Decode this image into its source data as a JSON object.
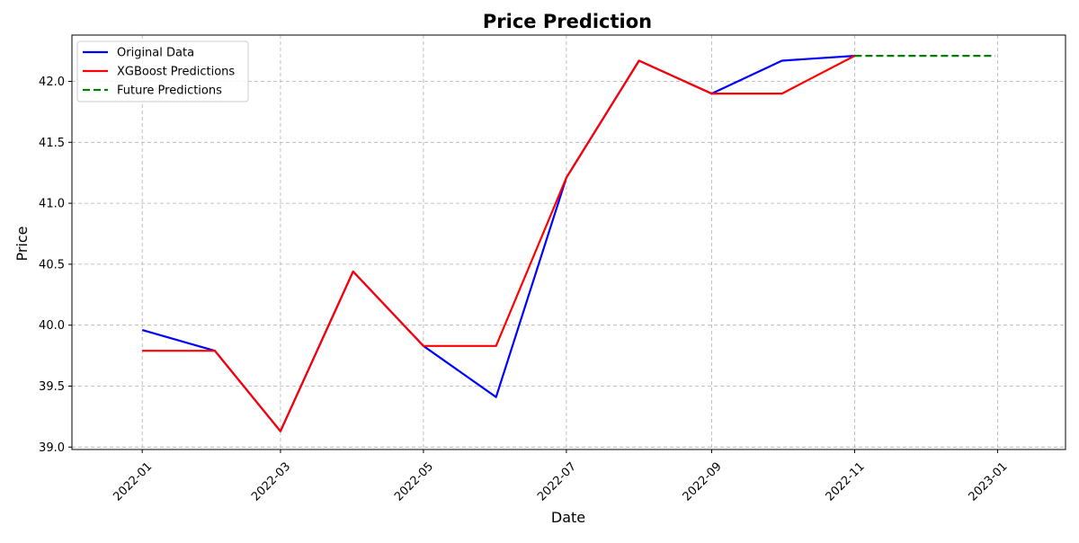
{
  "chart_data": {
    "type": "line",
    "title": "Price Prediction",
    "xlabel": "Date",
    "ylabel": "Price",
    "x_ticks": [
      "2022-01",
      "2022-03",
      "2022-05",
      "2022-07",
      "2022-09",
      "2022-11",
      "2023-01"
    ],
    "y_ticks": [
      "39.0",
      "39.5",
      "40.0",
      "40.5",
      "41.0",
      "41.5",
      "42.0"
    ],
    "xlim": [
      "2021-12-02",
      "2023-01-30"
    ],
    "ylim": [
      38.98,
      42.38
    ],
    "grid": true,
    "legend_position": "top-left",
    "series": [
      {
        "name": "Original Data",
        "color": "#0000ff",
        "style": "solid",
        "x": [
          "2022-01-01",
          "2022-02-01",
          "2022-03-01",
          "2022-04-01",
          "2022-05-01",
          "2022-06-01",
          "2022-07-01",
          "2022-08-01",
          "2022-09-01",
          "2022-10-01",
          "2022-11-01"
        ],
        "y": [
          39.96,
          39.79,
          39.13,
          40.44,
          39.83,
          39.41,
          41.21,
          42.17,
          41.9,
          42.17,
          42.21
        ]
      },
      {
        "name": "XGBoost Predictions",
        "color": "#ff0000",
        "style": "solid",
        "x": [
          "2022-01-01",
          "2022-02-01",
          "2022-03-01",
          "2022-04-01",
          "2022-05-01",
          "2022-06-01",
          "2022-07-01",
          "2022-08-01",
          "2022-09-01",
          "2022-10-01",
          "2022-11-01"
        ],
        "y": [
          39.79,
          39.79,
          39.13,
          40.44,
          39.83,
          39.83,
          41.21,
          42.17,
          41.9,
          41.9,
          42.21
        ]
      },
      {
        "name": "Future Predictions",
        "color": "#008000",
        "style": "dashed",
        "x": [
          "2022-11-01",
          "2022-12-31"
        ],
        "y": [
          42.21,
          42.21
        ]
      }
    ]
  }
}
